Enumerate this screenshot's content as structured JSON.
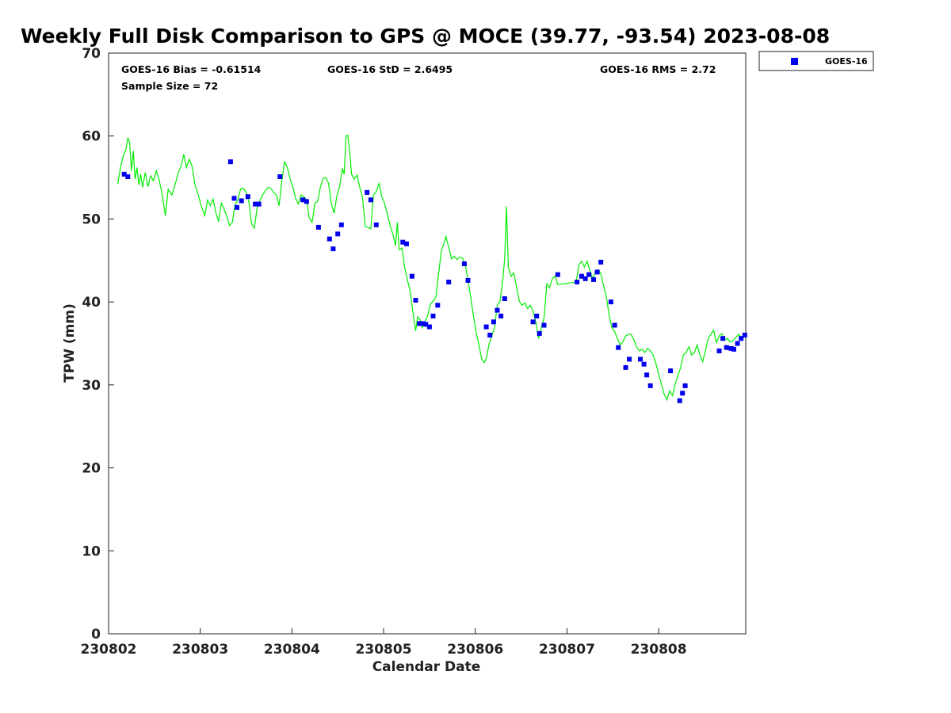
{
  "chart_data": {
    "type": "line+scatter",
    "title": "Weekly Full Disk Comparison to GPS @ MOCE (39.77, -93.54) 2023-08-08",
    "xlabel": "Calendar Date",
    "ylabel": "TPW (mm)",
    "xlim": [
      2.0,
      8.95
    ],
    "ylim": [
      0,
      70
    ],
    "x_ticks": [
      {
        "value": 2,
        "label": "230802"
      },
      {
        "value": 3,
        "label": "230803"
      },
      {
        "value": 4,
        "label": "230804"
      },
      {
        "value": 5,
        "label": "230805"
      },
      {
        "value": 6,
        "label": "230806"
      },
      {
        "value": 7,
        "label": "230807"
      },
      {
        "value": 8,
        "label": "230808"
      }
    ],
    "y_ticks": [
      {
        "value": 0,
        "label": "0"
      },
      {
        "value": 10,
        "label": "10"
      },
      {
        "value": 20,
        "label": "20"
      },
      {
        "value": 30,
        "label": "30"
      },
      {
        "value": 40,
        "label": "40"
      },
      {
        "value": 50,
        "label": "50"
      },
      {
        "value": 60,
        "label": "60"
      },
      {
        "value": 70,
        "label": "70"
      }
    ],
    "stats": {
      "bias": "GOES-16 Bias = -0.61514",
      "std": "GOES-16 StD = 2.6495",
      "rms": "GOES-16 RMS = 2.72",
      "sample": "Sample Size = 72"
    },
    "legend": {
      "label": "GOES-16",
      "position": "top-right-outside"
    },
    "series": [
      {
        "name": "GPS",
        "style": "line",
        "color": "#00ee00",
        "points": [
          [
            2.1,
            54.2
          ],
          [
            2.13,
            56.2
          ],
          [
            2.16,
            57.6
          ],
          [
            2.19,
            58.4
          ],
          [
            2.21,
            59.8
          ],
          [
            2.23,
            59.2
          ],
          [
            2.25,
            55.8
          ],
          [
            2.27,
            58.2
          ],
          [
            2.29,
            54.8
          ],
          [
            2.31,
            56.2
          ],
          [
            2.33,
            54.1
          ],
          [
            2.35,
            55.4
          ],
          [
            2.37,
            53.8
          ],
          [
            2.4,
            55.6
          ],
          [
            2.43,
            53.9
          ],
          [
            2.46,
            55.2
          ],
          [
            2.49,
            54.6
          ],
          [
            2.52,
            55.8
          ],
          [
            2.55,
            54.8
          ],
          [
            2.58,
            53.2
          ],
          [
            2.62,
            50.4
          ],
          [
            2.65,
            53.6
          ],
          [
            2.69,
            52.9
          ],
          [
            2.73,
            54.3
          ],
          [
            2.76,
            55.6
          ],
          [
            2.79,
            56.3
          ],
          [
            2.82,
            57.8
          ],
          [
            2.85,
            56.2
          ],
          [
            2.88,
            57.2
          ],
          [
            2.91,
            56.4
          ],
          [
            2.94,
            54.3
          ],
          [
            2.98,
            52.8
          ],
          [
            3.01,
            51.6
          ],
          [
            3.05,
            50.4
          ],
          [
            3.08,
            52.3
          ],
          [
            3.11,
            51.6
          ],
          [
            3.14,
            52.4
          ],
          [
            3.17,
            50.8
          ],
          [
            3.2,
            49.7
          ],
          [
            3.23,
            51.9
          ],
          [
            3.26,
            51.2
          ],
          [
            3.29,
            50.3
          ],
          [
            3.32,
            49.2
          ],
          [
            3.35,
            49.6
          ],
          [
            3.38,
            51.7
          ],
          [
            3.41,
            52.3
          ],
          [
            3.44,
            53.6
          ],
          [
            3.47,
            53.7
          ],
          [
            3.5,
            53.2
          ],
          [
            3.53,
            52.1
          ],
          [
            3.56,
            49.4
          ],
          [
            3.59,
            48.9
          ],
          [
            3.62,
            51.3
          ],
          [
            3.65,
            52.2
          ],
          [
            3.68,
            52.9
          ],
          [
            3.71,
            53.4
          ],
          [
            3.74,
            53.8
          ],
          [
            3.77,
            53.7
          ],
          [
            3.8,
            53.2
          ],
          [
            3.83,
            52.9
          ],
          [
            3.86,
            51.6
          ],
          [
            3.89,
            54.6
          ],
          [
            3.92,
            56.9
          ],
          [
            3.95,
            56.2
          ],
          [
            3.98,
            54.8
          ],
          [
            4.01,
            53.9
          ],
          [
            4.04,
            52.5
          ],
          [
            4.07,
            51.8
          ],
          [
            4.1,
            52.9
          ],
          [
            4.13,
            52.7
          ],
          [
            4.16,
            52.3
          ],
          [
            4.19,
            50.1
          ],
          [
            4.22,
            49.6
          ],
          [
            4.25,
            51.9
          ],
          [
            4.28,
            52.1
          ],
          [
            4.31,
            53.8
          ],
          [
            4.34,
            54.9
          ],
          [
            4.37,
            55.0
          ],
          [
            4.4,
            54.3
          ],
          [
            4.43,
            51.8
          ],
          [
            4.46,
            50.7
          ],
          [
            4.49,
            52.8
          ],
          [
            4.52,
            53.9
          ],
          [
            4.55,
            56.1
          ],
          [
            4.57,
            55.4
          ],
          [
            4.59,
            60.0
          ],
          [
            4.61,
            60.1
          ],
          [
            4.63,
            58.2
          ],
          [
            4.65,
            55.4
          ],
          [
            4.68,
            54.8
          ],
          [
            4.71,
            55.3
          ],
          [
            4.74,
            53.8
          ],
          [
            4.77,
            52.6
          ],
          [
            4.8,
            49.1
          ],
          [
            4.83,
            49.0
          ],
          [
            4.86,
            48.8
          ],
          [
            4.89,
            52.9
          ],
          [
            4.92,
            53.3
          ],
          [
            4.95,
            54.3
          ],
          [
            4.98,
            52.7
          ],
          [
            5.01,
            51.9
          ],
          [
            5.04,
            50.6
          ],
          [
            5.07,
            49.3
          ],
          [
            5.1,
            48.2
          ],
          [
            5.13,
            46.8
          ],
          [
            5.15,
            49.6
          ],
          [
            5.17,
            46.3
          ],
          [
            5.2,
            46.5
          ],
          [
            5.23,
            44.1
          ],
          [
            5.26,
            42.6
          ],
          [
            5.29,
            41.3
          ],
          [
            5.32,
            38.7
          ],
          [
            5.35,
            36.5
          ],
          [
            5.37,
            38.2
          ],
          [
            5.4,
            37.8
          ],
          [
            5.42,
            36.9
          ],
          [
            5.45,
            37.6
          ],
          [
            5.48,
            38.3
          ],
          [
            5.51,
            39.7
          ],
          [
            5.54,
            40.1
          ],
          [
            5.57,
            40.6
          ],
          [
            5.6,
            43.4
          ],
          [
            5.63,
            46.2
          ],
          [
            5.66,
            47.1
          ],
          [
            5.68,
            47.9
          ],
          [
            5.71,
            46.6
          ],
          [
            5.74,
            45.2
          ],
          [
            5.77,
            45.5
          ],
          [
            5.8,
            45.1
          ],
          [
            5.83,
            45.4
          ],
          [
            5.86,
            45.3
          ],
          [
            5.89,
            44.6
          ],
          [
            5.92,
            42.6
          ],
          [
            5.95,
            40.6
          ],
          [
            5.98,
            38.3
          ],
          [
            6.01,
            36.3
          ],
          [
            6.04,
            34.8
          ],
          [
            6.07,
            33.1
          ],
          [
            6.1,
            32.7
          ],
          [
            6.12,
            33.2
          ],
          [
            6.15,
            34.9
          ],
          [
            6.18,
            35.9
          ],
          [
            6.21,
            36.9
          ],
          [
            6.24,
            39.6
          ],
          [
            6.27,
            40.1
          ],
          [
            6.3,
            42.6
          ],
          [
            6.32,
            45.2
          ],
          [
            6.34,
            51.5
          ],
          [
            6.36,
            44.2
          ],
          [
            6.39,
            43.1
          ],
          [
            6.42,
            43.5
          ],
          [
            6.45,
            41.8
          ],
          [
            6.48,
            40.1
          ],
          [
            6.51,
            39.6
          ],
          [
            6.54,
            39.9
          ],
          [
            6.57,
            39.2
          ],
          [
            6.6,
            39.6
          ],
          [
            6.63,
            38.9
          ],
          [
            6.66,
            37.6
          ],
          [
            6.69,
            35.6
          ],
          [
            6.72,
            36.9
          ],
          [
            6.75,
            38.1
          ],
          [
            6.78,
            42.2
          ],
          [
            6.81,
            41.7
          ],
          [
            6.84,
            42.8
          ],
          [
            6.87,
            43.1
          ],
          [
            6.9,
            42.1
          ],
          [
            7.1,
            42.4
          ],
          [
            7.13,
            44.5
          ],
          [
            7.16,
            44.9
          ],
          [
            7.19,
            44.2
          ],
          [
            7.22,
            44.9
          ],
          [
            7.25,
            43.8
          ],
          [
            7.28,
            42.8
          ],
          [
            7.31,
            43.6
          ],
          [
            7.34,
            43.9
          ],
          [
            7.37,
            43.4
          ],
          [
            7.4,
            41.9
          ],
          [
            7.43,
            40.6
          ],
          [
            7.46,
            38.4
          ],
          [
            7.49,
            36.9
          ],
          [
            7.52,
            36.4
          ],
          [
            7.55,
            35.6
          ],
          [
            7.58,
            34.8
          ],
          [
            7.61,
            35.2
          ],
          [
            7.64,
            35.9
          ],
          [
            7.67,
            36.1
          ],
          [
            7.7,
            36.1
          ],
          [
            7.73,
            35.4
          ],
          [
            7.76,
            34.6
          ],
          [
            7.79,
            34.1
          ],
          [
            7.82,
            34.3
          ],
          [
            7.85,
            33.9
          ],
          [
            7.88,
            34.4
          ],
          [
            7.91,
            34.1
          ],
          [
            7.94,
            33.6
          ],
          [
            7.97,
            32.6
          ],
          [
            8.0,
            31.3
          ],
          [
            8.03,
            30.1
          ],
          [
            8.06,
            28.9
          ],
          [
            8.09,
            28.2
          ],
          [
            8.12,
            29.3
          ],
          [
            8.15,
            28.7
          ],
          [
            8.18,
            30.1
          ],
          [
            8.21,
            31.1
          ],
          [
            8.24,
            32.1
          ],
          [
            8.27,
            33.6
          ],
          [
            8.3,
            33.9
          ],
          [
            8.33,
            34.6
          ],
          [
            8.36,
            33.6
          ],
          [
            8.39,
            33.9
          ],
          [
            8.42,
            34.8
          ],
          [
            8.45,
            33.6
          ],
          [
            8.48,
            32.8
          ],
          [
            8.51,
            34.1
          ],
          [
            8.54,
            35.6
          ],
          [
            8.57,
            36.1
          ],
          [
            8.6,
            36.6
          ],
          [
            8.63,
            35.1
          ],
          [
            8.66,
            35.9
          ],
          [
            8.69,
            36.2
          ],
          [
            8.72,
            35.4
          ],
          [
            8.75,
            35.6
          ],
          [
            8.78,
            35.2
          ],
          [
            8.81,
            35.3
          ],
          [
            8.84,
            35.7
          ],
          [
            8.87,
            36.1
          ],
          [
            8.9,
            35.8
          ],
          [
            8.93,
            35.9
          ]
        ]
      },
      {
        "name": "GOES-16",
        "style": "markers",
        "color": "#0000ee",
        "points": [
          [
            2.17,
            55.4
          ],
          [
            2.21,
            55.1
          ],
          [
            3.33,
            56.9
          ],
          [
            3.37,
            52.5
          ],
          [
            3.4,
            51.4
          ],
          [
            3.45,
            52.2
          ],
          [
            3.52,
            52.7
          ],
          [
            3.6,
            51.8
          ],
          [
            3.64,
            51.8
          ],
          [
            3.87,
            55.1
          ],
          [
            4.12,
            52.3
          ],
          [
            4.16,
            52.1
          ],
          [
            4.29,
            49.0
          ],
          [
            4.41,
            47.6
          ],
          [
            4.45,
            46.4
          ],
          [
            4.5,
            48.2
          ],
          [
            4.54,
            49.3
          ],
          [
            4.82,
            53.2
          ],
          [
            4.86,
            52.3
          ],
          [
            4.92,
            49.3
          ],
          [
            5.21,
            47.2
          ],
          [
            5.25,
            47.0
          ],
          [
            5.31,
            43.1
          ],
          [
            5.35,
            40.2
          ],
          [
            5.39,
            37.4
          ],
          [
            5.43,
            37.4
          ],
          [
            5.46,
            37.3
          ],
          [
            5.5,
            37.0
          ],
          [
            5.54,
            38.3
          ],
          [
            5.59,
            39.6
          ],
          [
            5.71,
            42.4
          ],
          [
            5.88,
            44.6
          ],
          [
            5.92,
            42.6
          ],
          [
            6.12,
            37.0
          ],
          [
            6.16,
            36.0
          ],
          [
            6.2,
            37.6
          ],
          [
            6.24,
            39.0
          ],
          [
            6.28,
            38.3
          ],
          [
            6.32,
            40.4
          ],
          [
            6.63,
            37.6
          ],
          [
            6.67,
            38.3
          ],
          [
            6.7,
            36.2
          ],
          [
            6.75,
            37.2
          ],
          [
            6.9,
            43.3
          ],
          [
            7.11,
            42.4
          ],
          [
            7.16,
            43.1
          ],
          [
            7.2,
            42.8
          ],
          [
            7.24,
            43.3
          ],
          [
            7.29,
            42.7
          ],
          [
            7.33,
            43.6
          ],
          [
            7.37,
            44.8
          ],
          [
            7.48,
            40.0
          ],
          [
            7.52,
            37.2
          ],
          [
            7.56,
            34.5
          ],
          [
            7.64,
            32.1
          ],
          [
            7.68,
            33.1
          ],
          [
            7.8,
            33.1
          ],
          [
            7.84,
            32.5
          ],
          [
            7.87,
            31.2
          ],
          [
            7.91,
            29.9
          ],
          [
            8.13,
            31.7
          ],
          [
            8.23,
            28.1
          ],
          [
            8.26,
            29.0
          ],
          [
            8.29,
            29.9
          ],
          [
            8.66,
            34.1
          ],
          [
            8.7,
            35.6
          ],
          [
            8.74,
            34.5
          ],
          [
            8.79,
            34.4
          ],
          [
            8.82,
            34.3
          ],
          [
            8.86,
            35.0
          ],
          [
            8.9,
            35.6
          ],
          [
            8.94,
            36.0
          ]
        ]
      }
    ]
  }
}
